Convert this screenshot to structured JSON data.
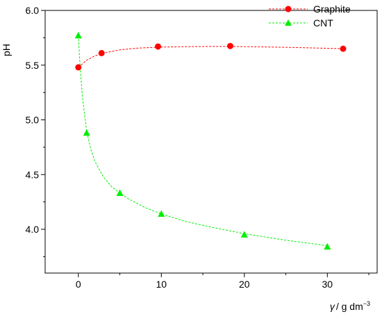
{
  "chart_data": {
    "type": "scatter",
    "title": "",
    "xlabel": {
      "symbol": "γ",
      "rest": "/ g dm",
      "exponent": "−3"
    },
    "ylabel": "pH",
    "xlim": [
      -4,
      36
    ],
    "ylim": [
      3.6,
      6.0
    ],
    "xticks": [
      0,
      10,
      20,
      30
    ],
    "xtick_labels": [
      "0",
      "10",
      "20",
      "30"
    ],
    "yticks": [
      4.0,
      4.5,
      5.0,
      5.5,
      6.0
    ],
    "ytick_labels": [
      "4.0",
      "4.5",
      "5.0",
      "5.5",
      "6.0"
    ],
    "grid": false,
    "legend_position": "top-right",
    "series": [
      {
        "name": "Graphite",
        "color": "#ff0000",
        "marker": "circle",
        "line_style": "dashed",
        "points": [
          {
            "x": 0,
            "y": 5.48
          },
          {
            "x": 2.8,
            "y": 5.61
          },
          {
            "x": 9.6,
            "y": 5.67
          },
          {
            "x": 18.3,
            "y": 5.675
          },
          {
            "x": 31.9,
            "y": 5.65
          }
        ],
        "fit_curve": [
          {
            "x": 0,
            "y": 5.48
          },
          {
            "x": 1,
            "y": 5.545
          },
          {
            "x": 2,
            "y": 5.585
          },
          {
            "x": 3,
            "y": 5.61
          },
          {
            "x": 5,
            "y": 5.64
          },
          {
            "x": 7,
            "y": 5.655
          },
          {
            "x": 10,
            "y": 5.665
          },
          {
            "x": 14,
            "y": 5.67
          },
          {
            "x": 18,
            "y": 5.671
          },
          {
            "x": 22,
            "y": 5.667
          },
          {
            "x": 26,
            "y": 5.661
          },
          {
            "x": 30,
            "y": 5.654
          },
          {
            "x": 32,
            "y": 5.65
          }
        ]
      },
      {
        "name": "CNT",
        "color": "#00ee00",
        "marker": "triangle",
        "line_style": "dashed",
        "points": [
          {
            "x": 0,
            "y": 5.77
          },
          {
            "x": 1,
            "y": 4.88
          },
          {
            "x": 5,
            "y": 4.33
          },
          {
            "x": 10,
            "y": 4.14
          },
          {
            "x": 20,
            "y": 3.95
          },
          {
            "x": 30,
            "y": 3.84
          }
        ],
        "fit_curve": [
          {
            "x": 0,
            "y": 5.77
          },
          {
            "x": 0.2,
            "y": 5.5
          },
          {
            "x": 0.5,
            "y": 5.2
          },
          {
            "x": 1,
            "y": 4.9
          },
          {
            "x": 1.5,
            "y": 4.73
          },
          {
            "x": 2,
            "y": 4.62
          },
          {
            "x": 3,
            "y": 4.48
          },
          {
            "x": 4,
            "y": 4.39
          },
          {
            "x": 5,
            "y": 4.33
          },
          {
            "x": 6,
            "y": 4.28
          },
          {
            "x": 8,
            "y": 4.2
          },
          {
            "x": 10,
            "y": 4.14
          },
          {
            "x": 13,
            "y": 4.07
          },
          {
            "x": 16,
            "y": 4.02
          },
          {
            "x": 20,
            "y": 3.96
          },
          {
            "x": 25,
            "y": 3.9
          },
          {
            "x": 30,
            "y": 3.85
          }
        ]
      }
    ]
  }
}
